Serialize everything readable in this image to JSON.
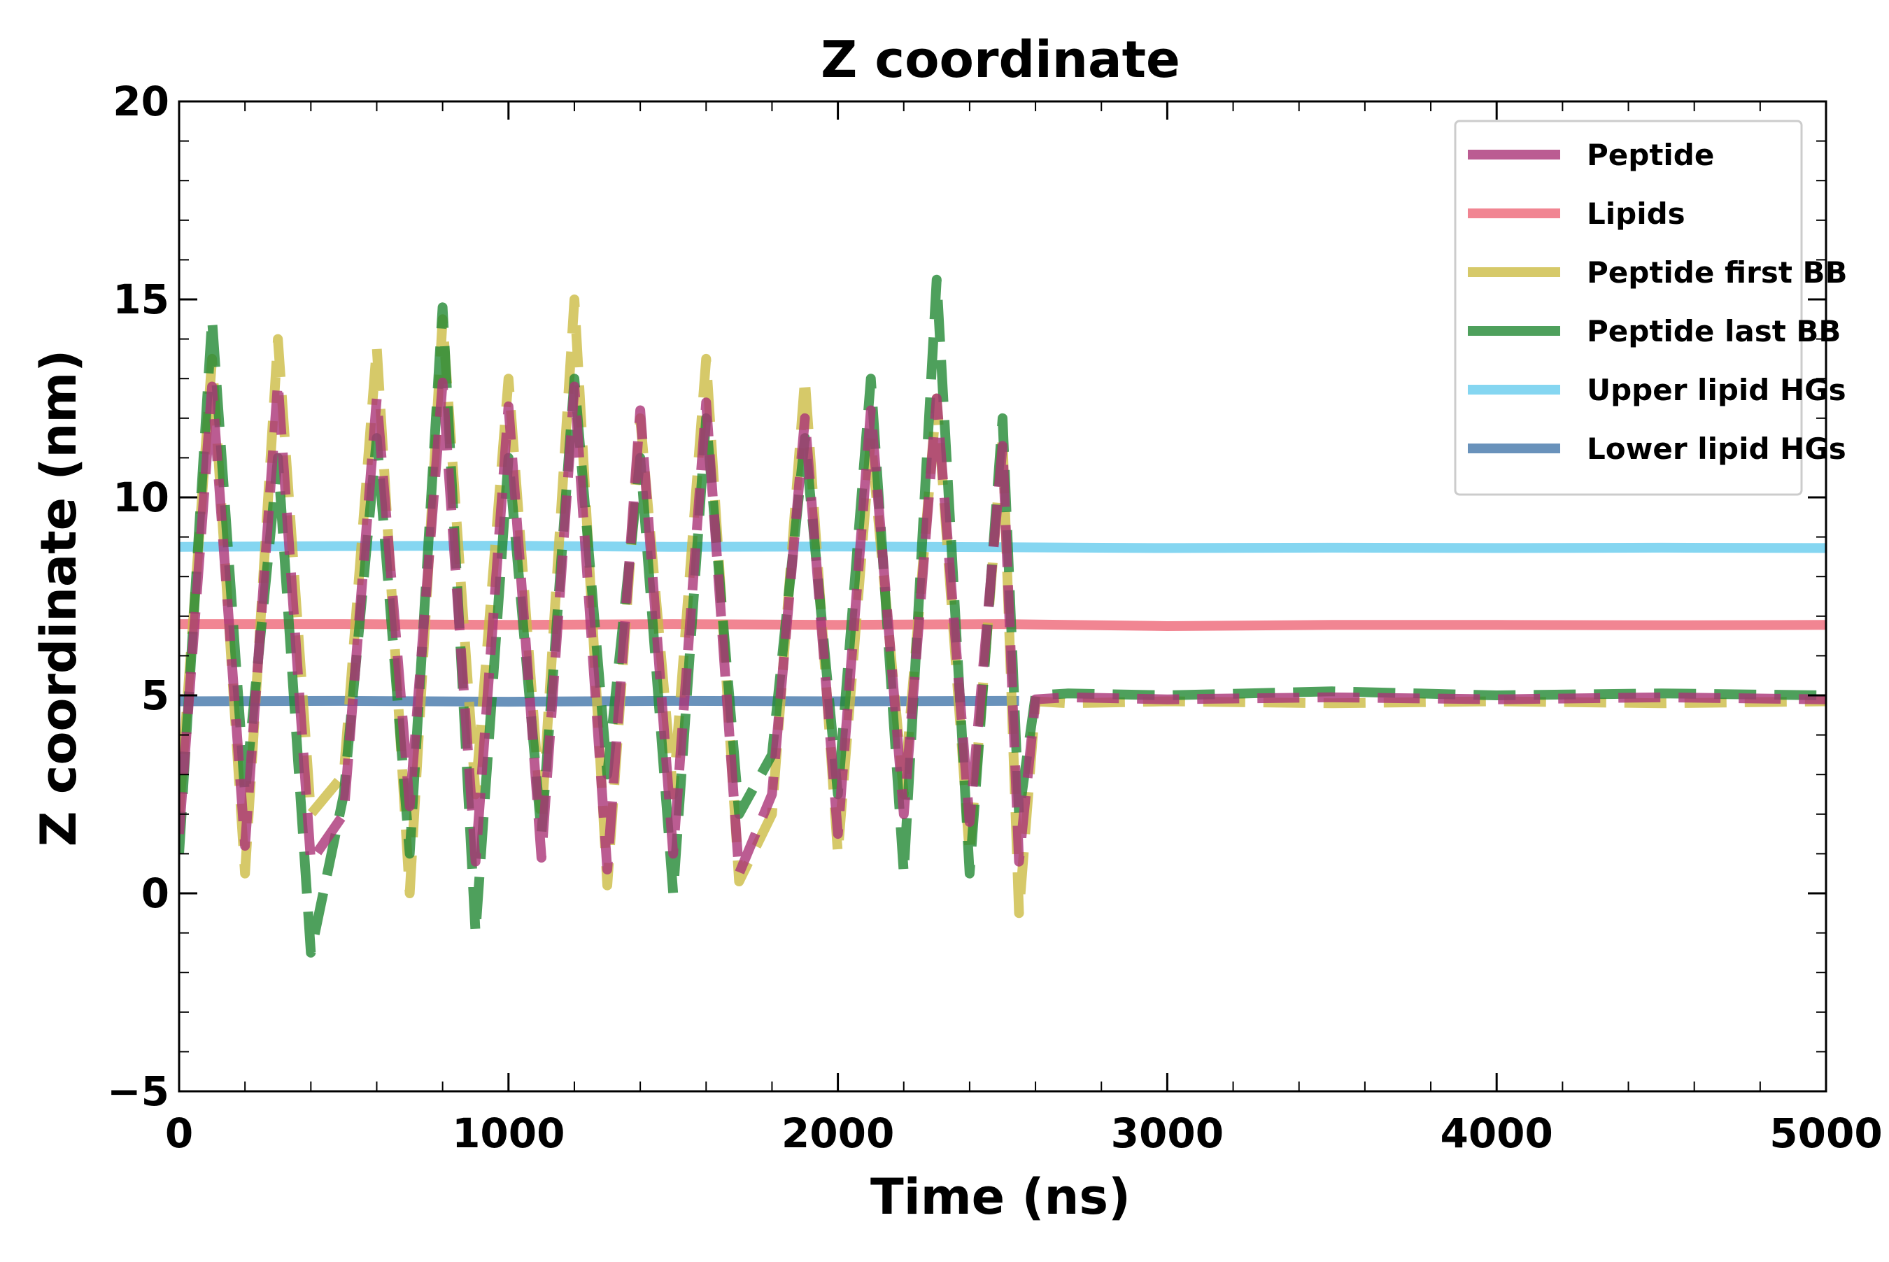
{
  "chart_data": {
    "type": "line",
    "title": "Z coordinate",
    "xlabel": "Time (ns)",
    "ylabel": "Z coordinate (nm)",
    "xlim": [
      0,
      5000
    ],
    "ylim": [
      -5,
      20
    ],
    "xticks": [
      0,
      1000,
      2000,
      3000,
      4000,
      5000
    ],
    "xtick_labels": [
      "0",
      "1000",
      "2000",
      "3000",
      "4000",
      "5000"
    ],
    "yticks": [
      -5,
      0,
      5,
      10,
      15,
      20
    ],
    "ytick_labels": [
      "−5",
      "0",
      "5",
      "10",
      "15",
      "20"
    ],
    "grid": false,
    "legend_position": "top-right",
    "series": [
      {
        "name": "Peptide",
        "color": "#aa3377",
        "style": "dashed",
        "x": [
          0,
          100,
          200,
          300,
          400,
          500,
          600,
          700,
          800,
          900,
          1000,
          1100,
          1200,
          1300,
          1400,
          1500,
          1600,
          1700,
          1800,
          1900,
          2000,
          2100,
          2200,
          2300,
          2400,
          2500,
          2550,
          2600,
          2700,
          3000,
          3500,
          4000,
          4500,
          5000
        ],
        "y": [
          1.5,
          12.8,
          1.2,
          12.9,
          0.8,
          2.0,
          12.5,
          2.2,
          12.9,
          0.8,
          12.3,
          0.9,
          12.8,
          0.6,
          12.2,
          1.0,
          12.4,
          0.5,
          2.5,
          12.0,
          1.5,
          12.2,
          2.0,
          12.5,
          1.8,
          11.3,
          0.8,
          4.9,
          4.95,
          4.9,
          4.95,
          4.9,
          4.95,
          4.9
        ]
      },
      {
        "name": "Lipids",
        "color": "#ee6677",
        "style": "solid",
        "x": [
          0,
          500,
          1000,
          1500,
          2000,
          2500,
          3000,
          3500,
          4000,
          4500,
          5000
        ],
        "y": [
          6.8,
          6.8,
          6.78,
          6.8,
          6.78,
          6.8,
          6.75,
          6.78,
          6.78,
          6.77,
          6.78
        ]
      },
      {
        "name": "Peptide first BB",
        "color": "#ccbb44",
        "style": "dashed",
        "x": [
          0,
          100,
          200,
          300,
          400,
          500,
          600,
          700,
          800,
          900,
          1000,
          1100,
          1200,
          1300,
          1400,
          1500,
          1600,
          1700,
          1800,
          1900,
          2000,
          2100,
          2200,
          2300,
          2400,
          2500,
          2550,
          2600,
          2700,
          3000,
          3500,
          4000,
          4500,
          5000
        ],
        "y": [
          2.0,
          13.5,
          0.5,
          14.0,
          2.0,
          3.0,
          13.8,
          0.0,
          14.5,
          2.5,
          13.0,
          1.8,
          15.0,
          0.2,
          12.0,
          2.5,
          13.5,
          0.3,
          2.0,
          13.0,
          1.0,
          11.5,
          2.5,
          12.5,
          1.0,
          11.5,
          -0.5,
          4.85,
          4.8,
          4.85,
          4.8,
          4.85,
          4.8,
          4.85
        ]
      },
      {
        "name": "Peptide last BB",
        "color": "#228833",
        "style": "dashed",
        "x": [
          0,
          100,
          200,
          300,
          400,
          500,
          600,
          700,
          800,
          900,
          1000,
          1100,
          1200,
          1300,
          1400,
          1500,
          1600,
          1700,
          1800,
          1900,
          2000,
          2100,
          2200,
          2300,
          2400,
          2500,
          2550,
          2600,
          2700,
          3000,
          3500,
          4000,
          4500,
          5000
        ],
        "y": [
          1.0,
          14.5,
          2.5,
          11.0,
          -1.5,
          2.5,
          11.5,
          1.0,
          14.8,
          -1.0,
          11.0,
          1.5,
          13.0,
          3.0,
          11.0,
          0.0,
          12.0,
          2.0,
          3.5,
          11.5,
          2.5,
          13.0,
          0.5,
          15.5,
          0.5,
          12.0,
          2.0,
          5.0,
          5.05,
          5.0,
          5.1,
          5.0,
          5.05,
          5.0
        ]
      },
      {
        "name": "Upper lipid HGs",
        "color": "#66ccee",
        "style": "solid",
        "x": [
          0,
          500,
          1000,
          1500,
          2000,
          2500,
          3000,
          3500,
          4000,
          4500,
          5000
        ],
        "y": [
          8.75,
          8.77,
          8.78,
          8.75,
          8.76,
          8.74,
          8.72,
          8.73,
          8.72,
          8.73,
          8.72
        ]
      },
      {
        "name": "Lower lipid HGs",
        "color": "#4477aa",
        "style": "solid",
        "x": [
          0,
          500,
          1000,
          1500,
          2000,
          2500,
          2550
        ],
        "y": [
          4.85,
          4.86,
          4.84,
          4.86,
          4.85,
          4.86,
          4.86
        ]
      }
    ]
  }
}
